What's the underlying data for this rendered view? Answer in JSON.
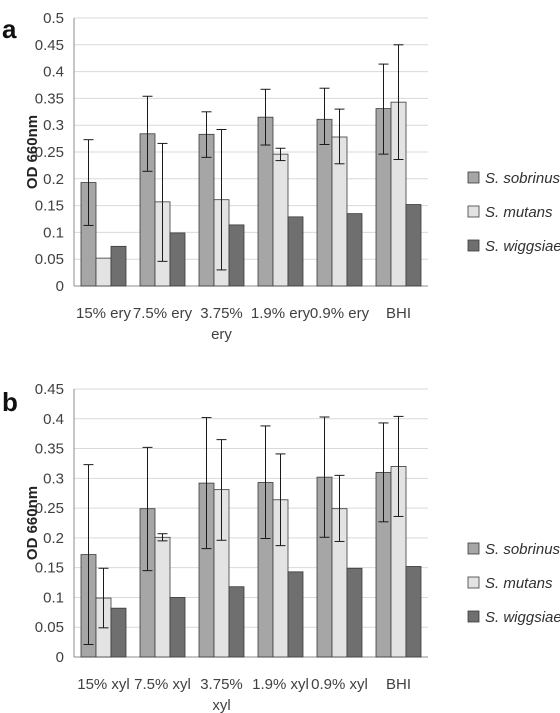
{
  "colors": {
    "S. sobrinus": "#a6a6a6",
    "S. mutans": "#e3e3e3",
    "S. wiggsiae": "#6f6f6f"
  },
  "legend": [
    "S. sobrinus",
    "S. mutans",
    "S. wiggsiae"
  ],
  "chart_data": [
    {
      "type": "bar",
      "panel_label": "a",
      "ylabel": "OD 660nm",
      "ylim": [
        0,
        0.5
      ],
      "yticks": [
        "0",
        "0.05",
        "0.1",
        "0.15",
        "0.2",
        "0.25",
        "0.3",
        "0.35",
        "0.4",
        "0.45",
        "0.5"
      ],
      "categories": [
        [
          "15% ery"
        ],
        [
          "7.5% ery"
        ],
        [
          "3.75%",
          "ery"
        ],
        [
          "1.9% ery"
        ],
        [
          "0.9% ery"
        ],
        [
          "BHI"
        ]
      ],
      "grid": true,
      "legend_position": "right",
      "series": [
        {
          "name": "S. sobrinus",
          "values": [
            0.193,
            0.284,
            0.283,
            0.315,
            0.311,
            0.331
          ],
          "err_low": [
            0.113,
            0.214,
            0.24,
            0.263,
            0.264,
            0.246
          ],
          "err_high": [
            0.273,
            0.354,
            0.325,
            0.367,
            0.369,
            0.414
          ]
        },
        {
          "name": "S. mutans",
          "values": [
            0.052,
            0.157,
            0.161,
            0.246,
            0.278,
            0.343
          ],
          "err_low": null,
          "err_high": null
        },
        {
          "name": "S. wiggsiae",
          "values": [
            0.074,
            0.099,
            0.114,
            0.129,
            0.135,
            0.152
          ]
        }
      ],
      "err_bars_mutans": {
        "low": [
          null,
          0.046,
          0.03,
          0.234,
          0.228,
          0.236
        ],
        "high": [
          null,
          0.266,
          0.292,
          0.257,
          0.33,
          0.45
        ]
      }
    },
    {
      "type": "bar",
      "panel_label": "b",
      "ylabel": "OD 660nm",
      "ylim": [
        0,
        0.45
      ],
      "yticks": [
        "0",
        "0.05",
        "0.1",
        "0.15",
        "0.2",
        "0.25",
        "0.3",
        "0.35",
        "0.4",
        "0.45"
      ],
      "categories": [
        [
          "15% xyl"
        ],
        [
          "7.5% xyl"
        ],
        [
          "3.75%",
          "xyl"
        ],
        [
          "1.9% xyl"
        ],
        [
          "0.9% xyl"
        ],
        [
          "BHI"
        ]
      ],
      "grid": true,
      "legend_position": "right",
      "series": [
        {
          "name": "S. sobrinus",
          "values": [
            0.172,
            0.249,
            0.292,
            0.293,
            0.302,
            0.31
          ],
          "err_low": [
            0.021,
            0.145,
            0.182,
            0.199,
            0.201,
            0.227
          ],
          "err_high": [
            0.323,
            0.352,
            0.402,
            0.388,
            0.403,
            0.393
          ]
        },
        {
          "name": "S. mutans",
          "values": [
            0.099,
            0.201,
            0.281,
            0.264,
            0.249,
            0.32
          ],
          "err_low": [
            0.049,
            0.195,
            0.196,
            0.187,
            0.194,
            0.236
          ],
          "err_high": [
            0.149,
            0.207,
            0.365,
            0.341,
            0.305,
            0.404
          ]
        },
        {
          "name": "S. wiggsiae",
          "values": [
            0.082,
            0.1,
            0.118,
            0.143,
            0.149,
            0.152
          ]
        }
      ]
    }
  ]
}
